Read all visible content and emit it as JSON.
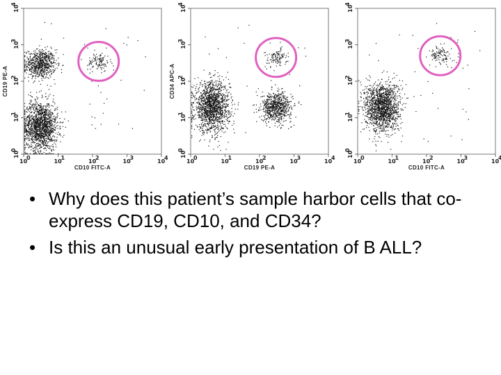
{
  "chart_data": [
    {
      "type": "scatter",
      "xlabel": "CD10 FITC-A",
      "ylabel": "CD19 PE-A",
      "xlim": [
        0,
        10000
      ],
      "ylim": [
        0,
        10000
      ],
      "log_scale": true,
      "x_ticks": [
        "10",
        "10",
        "10",
        "10",
        "10"
      ],
      "x_tick_exps": [
        "0",
        "1",
        "2",
        "3",
        "4"
      ],
      "y_ticks": [
        "10",
        "10",
        "10",
        "10",
        "10"
      ],
      "y_tick_exps": [
        "0",
        "1",
        "2",
        "3",
        "4"
      ],
      "gate_color": "#e060c0",
      "populations": [
        {
          "x_center": 3,
          "y_center": 300,
          "density": "high"
        },
        {
          "x_center": 3,
          "y_center": 6,
          "density": "very high"
        },
        {
          "x_center": 150,
          "y_center": 350,
          "density": "low",
          "gated": true
        }
      ]
    },
    {
      "type": "scatter",
      "xlabel": "CD19 PE-A",
      "ylabel": "CD34 APC-A",
      "xlim": [
        0,
        10000
      ],
      "ylim": [
        0,
        10000
      ],
      "log_scale": true,
      "x_ticks": [
        "10",
        "10",
        "10",
        "10",
        "10"
      ],
      "x_tick_exps": [
        "0",
        "1",
        "2",
        "3",
        "4"
      ],
      "y_ticks": [
        "10",
        "10",
        "10",
        "10",
        "10"
      ],
      "y_tick_exps": [
        "0",
        "1",
        "2",
        "3",
        "4"
      ],
      "gate_color": "#e060c0",
      "populations": [
        {
          "x_center": 4,
          "y_center": 20,
          "density": "very high"
        },
        {
          "x_center": 300,
          "y_center": 20,
          "density": "high"
        },
        {
          "x_center": 300,
          "y_center": 450,
          "density": "low",
          "gated": true
        }
      ]
    },
    {
      "type": "scatter",
      "xlabel": "CD10 FITC-A",
      "ylabel": "",
      "xlim": [
        0,
        10000
      ],
      "ylim": [
        0,
        10000
      ],
      "log_scale": true,
      "x_ticks": [
        "10",
        "10",
        "10",
        "10",
        "10"
      ],
      "x_tick_exps": [
        "0",
        "1",
        "2",
        "3",
        "4"
      ],
      "y_ticks": [
        "10",
        "10",
        "10",
        "10",
        "10"
      ],
      "y_tick_exps": [
        "0",
        "1",
        "2",
        "3",
        "4"
      ],
      "gate_color": "#e060c0",
      "populations": [
        {
          "x_center": 5,
          "y_center": 20,
          "density": "very high"
        },
        {
          "x_center": 250,
          "y_center": 500,
          "density": "low",
          "gated": true
        }
      ]
    }
  ],
  "bullets": [
    {
      "marker": "•",
      "text": "Why does this patient’s sample harbor cells that co-express CD19, CD10, and CD34?"
    },
    {
      "marker": "•",
      "text": "Is this an unusual early presentation of B ALL?"
    }
  ]
}
